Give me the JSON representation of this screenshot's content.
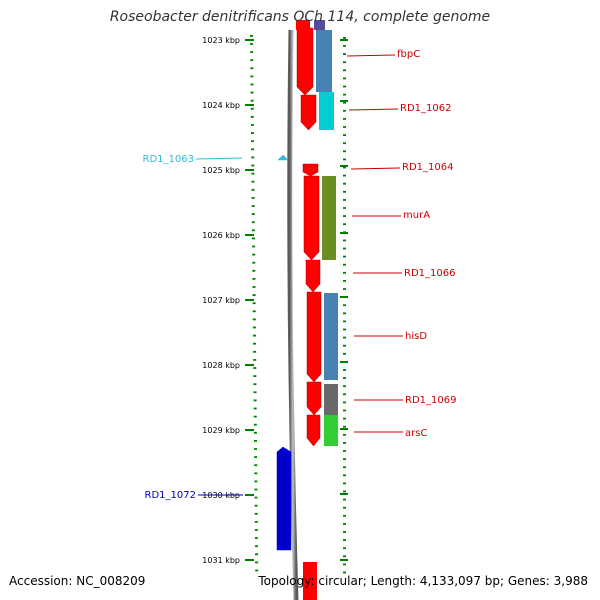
{
  "map": {
    "title": "Roseobacter denitrificans OCh 114, complete genome",
    "accession": "Accession: NC_008209",
    "summary": "Topology: circular; Length: 4,133,097 bp; Genes: 3,988"
  },
  "colors": {
    "backbone": "#808080",
    "tick": "#008000",
    "forward_gene": "#ff0000",
    "gene_label": "#cc0000"
  },
  "scale_labels": [
    "1023 kbp",
    "1024 kbp",
    "1025 kbp",
    "1026 kbp",
    "1027 kbp",
    "1028 kbp",
    "1029 kbp",
    "1030 kbp",
    "1031 kbp"
  ],
  "forward_genes": [
    {
      "name": "fbpC",
      "color": "#ff0000"
    },
    {
      "name": "RD1_1062",
      "color": "#ff0000"
    },
    {
      "name": "RD1_1064",
      "color": "#ff0000"
    },
    {
      "name": "murA",
      "color": "#ff0000"
    },
    {
      "name": "RD1_1066",
      "color": "#ff0000"
    },
    {
      "name": "hisD",
      "color": "#ff0000"
    },
    {
      "name": "RD1_1069",
      "color": "#ff0000"
    },
    {
      "name": "arsC",
      "color": "#ff0000"
    }
  ],
  "category_blocks": [
    {
      "gene": "fbpC",
      "color": "#4682b4"
    },
    {
      "gene": "RD1_1062",
      "color": "#00ced1"
    },
    {
      "gene": "murA",
      "color": "#6b8e23"
    },
    {
      "gene": "hisD",
      "color": "#4682b4"
    },
    {
      "gene": "RD1_1069",
      "color": "#696969"
    },
    {
      "gene": "arsC",
      "color": "#32cd32"
    }
  ],
  "reverse_features": [
    {
      "name": "RD1_1063",
      "color": "#33bbdd"
    },
    {
      "name": "RD1_1072",
      "color": "#0000cc"
    }
  ],
  "gene_labels": [
    {
      "text": "fbpC",
      "color": "#cc0000"
    },
    {
      "text": "RD1_1062",
      "color": "#cc0000"
    },
    {
      "text": "RD1_1064",
      "color": "#cc0000"
    },
    {
      "text": "murA",
      "color": "#cc0000"
    },
    {
      "text": "RD1_1066",
      "color": "#cc0000"
    },
    {
      "text": "hisD",
      "color": "#cc0000"
    },
    {
      "text": "RD1_1069",
      "color": "#cc0000"
    },
    {
      "text": "arsC",
      "color": "#cc0000"
    },
    {
      "text": "RD1_1063",
      "color": "#33bbdd"
    },
    {
      "text": "RD1_1072",
      "color": "#0000cc"
    }
  ]
}
